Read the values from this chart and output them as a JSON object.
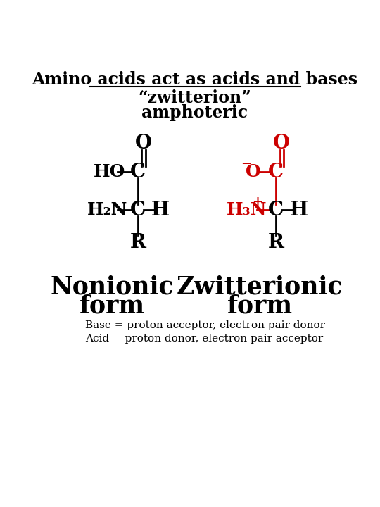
{
  "title_line1": "Amino acids act as acids and bases",
  "title_line2": "“zwitterion”",
  "title_line3": "amphoteric",
  "label_left_1": "Nonionic",
  "label_left_2": "form",
  "label_right_1": "Zwitterionic",
  "label_right_2": "form",
  "footer_line1": "Base = proton acceptor, electron pair donor",
  "footer_line2": "Acid = proton donor, electron pair acceptor",
  "black": "#000000",
  "red": "#cc0000",
  "bg": "#ffffff"
}
